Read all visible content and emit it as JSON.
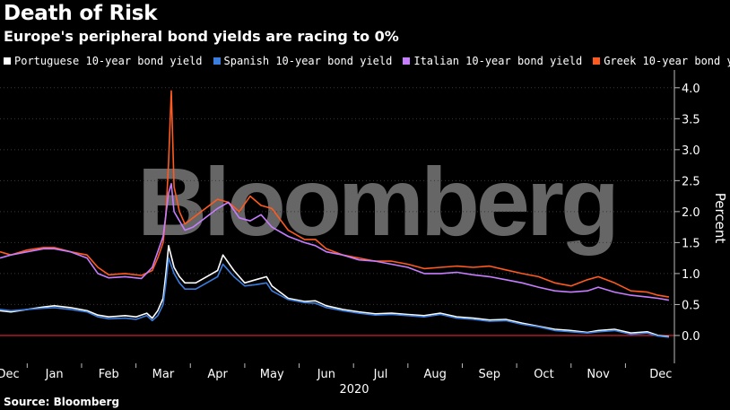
{
  "title": "Death of Risk",
  "subtitle": "Europe's peripheral bond yields are racing to 0%",
  "source": "Source: Bloomberg",
  "watermark": "Bloomberg",
  "colors": {
    "background": "#000000",
    "portugal": "#ffffff",
    "spain": "#3b7ddd",
    "italy": "#c77dff",
    "greece": "#ff5a1f",
    "zero_line": "#e0252f",
    "grid": "#3a3a3a"
  },
  "chart_data": {
    "type": "line",
    "title": "Death of Risk",
    "subtitle": "Europe's peripheral bond yields are racing to 0%",
    "xlabel": "2020",
    "ylabel": "Percent",
    "x_unit": "months since start of December 2019",
    "xlim": [
      0,
      12.4
    ],
    "ylim": [
      -0.45,
      4.2
    ],
    "yticks": [
      0.0,
      0.5,
      1.0,
      1.5,
      2.0,
      2.5,
      3.0,
      3.5,
      4.0
    ],
    "ytick_labels": [
      "0.0",
      "0.5",
      "1.0",
      "1.5",
      "2.0",
      "2.5",
      "3.0",
      "3.5",
      "4.0"
    ],
    "month_labels": [
      "Dec",
      "Jan",
      "Feb",
      "Mar",
      "Apr",
      "May",
      "Jun",
      "Jul",
      "Aug",
      "Sep",
      "Oct",
      "Nov",
      "Dec"
    ],
    "month_label_positions": [
      0.15,
      1.0,
      2.0,
      3.0,
      4.0,
      5.0,
      6.0,
      7.0,
      8.0,
      9.0,
      10.0,
      11.0,
      12.15
    ],
    "reference_line": 0.0,
    "legend_position": "top-left",
    "grid": "horizontal dotted",
    "series": [
      {
        "name": "Greek 10-year bond yield",
        "color_key": "greece",
        "x": [
          0,
          0.2,
          0.5,
          0.8,
          1.0,
          1.3,
          1.6,
          1.8,
          2.0,
          2.3,
          2.6,
          2.8,
          2.9,
          3.0,
          3.05,
          3.1,
          3.15,
          3.2,
          3.25,
          3.3,
          3.4,
          3.55,
          3.7,
          3.85,
          4.0,
          4.2,
          4.4,
          4.6,
          4.8,
          5.0,
          5.3,
          5.6,
          5.8,
          6.0,
          6.3,
          6.6,
          6.9,
          7.2,
          7.5,
          7.8,
          8.1,
          8.4,
          8.7,
          9.0,
          9.3,
          9.6,
          9.9,
          10.2,
          10.5,
          10.8,
          11.0,
          11.3,
          11.6,
          11.9,
          12.1,
          12.3
        ],
        "values": [
          1.35,
          1.3,
          1.38,
          1.42,
          1.42,
          1.35,
          1.3,
          1.1,
          0.98,
          1.0,
          0.97,
          1.05,
          1.25,
          1.5,
          1.95,
          2.8,
          3.95,
          2.4,
          2.2,
          2.0,
          1.8,
          1.9,
          2.0,
          2.1,
          2.2,
          2.15,
          2.0,
          2.25,
          2.1,
          2.05,
          1.7,
          1.55,
          1.55,
          1.4,
          1.3,
          1.25,
          1.2,
          1.2,
          1.15,
          1.08,
          1.1,
          1.12,
          1.1,
          1.12,
          1.06,
          1.0,
          0.95,
          0.85,
          0.8,
          0.9,
          0.95,
          0.85,
          0.72,
          0.7,
          0.65,
          0.62
        ]
      },
      {
        "name": "Italian 10-year bond yield",
        "color_key": "italy",
        "x": [
          0,
          0.2,
          0.5,
          0.8,
          1.0,
          1.3,
          1.6,
          1.8,
          2.0,
          2.3,
          2.6,
          2.8,
          2.9,
          3.0,
          3.1,
          3.15,
          3.2,
          3.3,
          3.4,
          3.55,
          3.7,
          3.85,
          4.0,
          4.2,
          4.4,
          4.6,
          4.8,
          5.0,
          5.3,
          5.6,
          5.8,
          6.0,
          6.3,
          6.6,
          6.9,
          7.2,
          7.5,
          7.8,
          8.1,
          8.4,
          8.7,
          9.0,
          9.3,
          9.6,
          9.9,
          10.2,
          10.5,
          10.8,
          11.0,
          11.3,
          11.6,
          11.9,
          12.1,
          12.3
        ],
        "values": [
          1.25,
          1.3,
          1.35,
          1.4,
          1.4,
          1.35,
          1.25,
          1.0,
          0.93,
          0.95,
          0.92,
          1.1,
          1.35,
          1.6,
          2.3,
          2.45,
          2.0,
          1.85,
          1.7,
          1.75,
          1.85,
          1.95,
          2.05,
          2.15,
          1.9,
          1.85,
          1.95,
          1.75,
          1.6,
          1.5,
          1.45,
          1.35,
          1.3,
          1.22,
          1.2,
          1.15,
          1.1,
          1.0,
          1.0,
          1.02,
          0.98,
          0.95,
          0.9,
          0.85,
          0.78,
          0.72,
          0.7,
          0.72,
          0.78,
          0.7,
          0.65,
          0.62,
          0.6,
          0.57
        ]
      },
      {
        "name": "Portuguese 10-year bond yield",
        "color_key": "portugal",
        "x": [
          0,
          0.2,
          0.5,
          0.8,
          1.0,
          1.3,
          1.6,
          1.8,
          2.0,
          2.3,
          2.5,
          2.7,
          2.8,
          2.9,
          3.0,
          3.05,
          3.1,
          3.2,
          3.3,
          3.4,
          3.6,
          3.8,
          4.0,
          4.1,
          4.3,
          4.5,
          4.7,
          4.9,
          5.0,
          5.3,
          5.6,
          5.8,
          6.0,
          6.3,
          6.6,
          6.9,
          7.2,
          7.5,
          7.8,
          8.1,
          8.4,
          8.7,
          9.0,
          9.3,
          9.6,
          9.9,
          10.2,
          10.5,
          10.8,
          11.0,
          11.3,
          11.6,
          11.9,
          12.1,
          12.3
        ],
        "values": [
          0.4,
          0.38,
          0.42,
          0.46,
          0.48,
          0.45,
          0.4,
          0.33,
          0.3,
          0.32,
          0.3,
          0.36,
          0.28,
          0.4,
          0.6,
          1.0,
          1.45,
          1.1,
          0.95,
          0.85,
          0.85,
          0.95,
          1.05,
          1.3,
          1.05,
          0.85,
          0.9,
          0.95,
          0.8,
          0.6,
          0.55,
          0.56,
          0.48,
          0.42,
          0.38,
          0.35,
          0.36,
          0.34,
          0.32,
          0.36,
          0.3,
          0.28,
          0.25,
          0.26,
          0.2,
          0.15,
          0.1,
          0.08,
          0.05,
          0.08,
          0.1,
          0.04,
          0.06,
          0.0,
          -0.02
        ]
      },
      {
        "name": "Spanish 10-year bond yield",
        "color_key": "spain",
        "x": [
          0,
          0.2,
          0.5,
          0.8,
          1.0,
          1.3,
          1.6,
          1.8,
          2.0,
          2.3,
          2.5,
          2.7,
          2.8,
          2.9,
          3.0,
          3.05,
          3.1,
          3.2,
          3.3,
          3.4,
          3.6,
          3.8,
          4.0,
          4.1,
          4.3,
          4.5,
          4.7,
          4.9,
          5.0,
          5.3,
          5.6,
          5.8,
          6.0,
          6.3,
          6.6,
          6.9,
          7.2,
          7.5,
          7.8,
          8.1,
          8.4,
          8.7,
          9.0,
          9.3,
          9.6,
          9.9,
          10.2,
          10.5,
          10.8,
          11.0,
          11.3,
          11.6,
          11.9,
          12.1,
          12.3
        ],
        "values": [
          0.42,
          0.4,
          0.42,
          0.44,
          0.45,
          0.42,
          0.38,
          0.3,
          0.27,
          0.28,
          0.26,
          0.32,
          0.24,
          0.32,
          0.5,
          0.85,
          1.25,
          1.0,
          0.85,
          0.75,
          0.75,
          0.85,
          0.95,
          1.15,
          0.95,
          0.8,
          0.82,
          0.85,
          0.72,
          0.58,
          0.53,
          0.52,
          0.45,
          0.4,
          0.36,
          0.33,
          0.34,
          0.32,
          0.3,
          0.34,
          0.28,
          0.26,
          0.23,
          0.24,
          0.18,
          0.14,
          0.08,
          0.06,
          0.04,
          0.06,
          0.08,
          0.02,
          0.04,
          -0.01,
          -0.03
        ]
      }
    ]
  },
  "legend": [
    {
      "label": "Portuguese 10-year bond yield",
      "color_key": "portugal"
    },
    {
      "label": "Spanish 10-year bond yield",
      "color_key": "spain"
    },
    {
      "label": "Italian 10-year bond yield",
      "color_key": "italy"
    },
    {
      "label": "Greek 10-year bond yield",
      "color_key": "greece"
    }
  ]
}
